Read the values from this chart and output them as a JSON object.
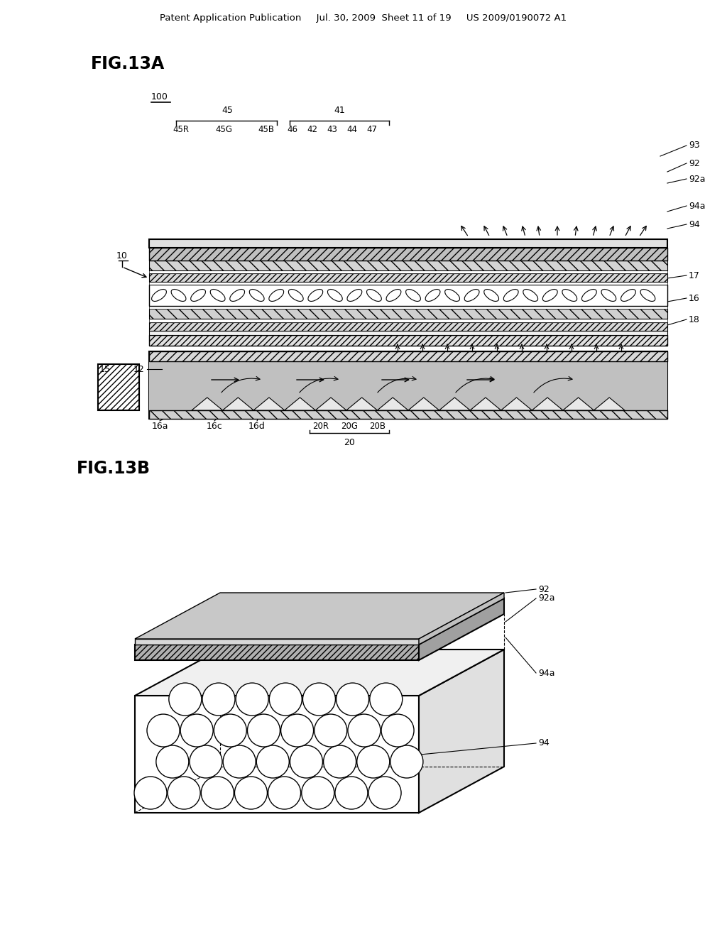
{
  "bg_color": "#ffffff",
  "header_text": "Patent Application Publication     Jul. 30, 2009  Sheet 11 of 19     US 2009/0190072 A1",
  "fig13a_label": "FIG.13A",
  "fig13b_label": "FIG.13B",
  "label_100": "100",
  "label_45": "45",
  "label_41": "41",
  "label_45R": "45R",
  "label_45G": "45G",
  "label_45B": "45B",
  "label_46": "46",
  "label_42": "42",
  "label_43": "43",
  "label_44": "44",
  "label_47": "47",
  "label_93": "93",
  "label_92": "92",
  "label_92a": "92a",
  "label_94a": "94a",
  "label_94": "94",
  "label_10": "10",
  "label_15": "15",
  "label_12": "12",
  "label_17": "17",
  "label_16": "16",
  "label_18": "18",
  "label_16a": "16a",
  "label_16c": "16c",
  "label_16d": "16d",
  "label_20R": "20R",
  "label_20G": "20G",
  "label_20B": "20B",
  "label_20": "20"
}
